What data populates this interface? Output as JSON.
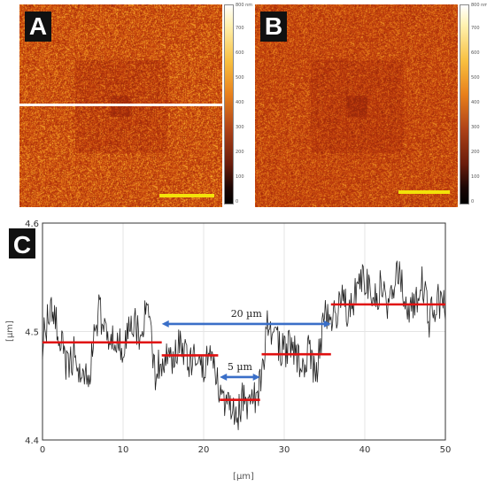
{
  "panels": {
    "a": {
      "label": "A"
    },
    "b": {
      "label": "B"
    },
    "c": {
      "label": "C"
    }
  },
  "colorbar": {
    "unit_label": "800 nm",
    "ticks": [
      "700",
      "600",
      "500",
      "400",
      "300",
      "200",
      "100",
      "0"
    ]
  },
  "chart_data": {
    "type": "line",
    "xlabel": "[µm]",
    "ylabel": "[µm]",
    "xlim": [
      0,
      50
    ],
    "ylim": [
      4.4,
      4.6
    ],
    "xticks": [
      "0",
      "10",
      "20",
      "30",
      "40",
      "50"
    ],
    "yticks": [
      "4.4",
      "4.5",
      "4.6"
    ],
    "grid": true,
    "series": [
      {
        "x": [
          0,
          1,
          2,
          3,
          4,
          5,
          6,
          7,
          8,
          9,
          10,
          11,
          12,
          13,
          14,
          15,
          16,
          17,
          18,
          19,
          20,
          21,
          22,
          23,
          24,
          25,
          26,
          27,
          28,
          29,
          30,
          31,
          32,
          33,
          34,
          35,
          36,
          37,
          38,
          39,
          40,
          41,
          42,
          43,
          44,
          45,
          46,
          47,
          48,
          49,
          50
        ],
        "values": [
          4.49,
          4.52,
          4.5,
          4.47,
          4.48,
          4.45,
          4.47,
          4.52,
          4.49,
          4.5,
          4.48,
          4.51,
          4.5,
          4.52,
          4.46,
          4.48,
          4.47,
          4.49,
          4.47,
          4.48,
          4.47,
          4.48,
          4.44,
          4.43,
          4.42,
          4.44,
          4.43,
          4.45,
          4.51,
          4.49,
          4.48,
          4.49,
          4.47,
          4.48,
          4.46,
          4.52,
          4.51,
          4.53,
          4.52,
          4.54,
          4.55,
          4.53,
          4.54,
          4.52,
          4.56,
          4.53,
          4.52,
          4.55,
          4.51,
          4.53,
          4.52
        ]
      }
    ],
    "levels": [
      {
        "x": [
          0,
          14.8
        ],
        "y": 4.49
      },
      {
        "x": [
          14.8,
          21.8
        ],
        "y": 4.478
      },
      {
        "x": [
          22,
          27
        ],
        "y": 4.437
      },
      {
        "x": [
          27.2,
          35.8
        ],
        "y": 4.479
      },
      {
        "x": [
          35.8,
          50
        ],
        "y": 4.525
      }
    ],
    "annotations": [
      {
        "text": "20 µm",
        "x": [
          14.8,
          35.8
        ],
        "y": 4.507
      },
      {
        "text": "5 µm",
        "x": [
          22,
          27
        ],
        "y": 4.458
      }
    ]
  }
}
